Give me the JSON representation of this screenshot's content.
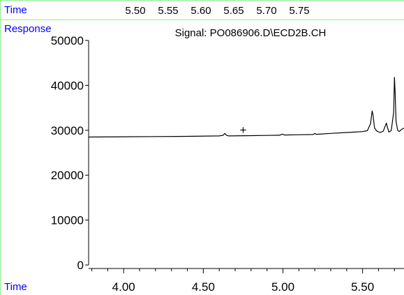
{
  "header": {
    "time_label": "Time",
    "time_ticks": [
      "5.50",
      "5.55",
      "5.60",
      "5.65",
      "5.70",
      "5.75"
    ]
  },
  "chart_data": {
    "type": "line",
    "title": "Signal: PO086906.D\\ECD2B.CH",
    "ylabel": "Response",
    "xlabel": "Time",
    "xlim": [
      3.78,
      5.76
    ],
    "ylim": [
      0,
      50000
    ],
    "xticks": [
      4.0,
      4.5,
      5.0,
      5.5
    ],
    "xtick_labels": [
      "4.00",
      "4.50",
      "5.00",
      "5.50"
    ],
    "yticks": [
      0,
      10000,
      20000,
      30000,
      40000,
      50000
    ],
    "ytick_labels": [
      "0",
      "10000",
      "20000",
      "30000",
      "40000",
      "50000"
    ],
    "grid": false,
    "series": [
      {
        "color": "#000000",
        "x": [
          3.78,
          4.0,
          4.2,
          4.4,
          4.6,
          4.625,
          4.635,
          4.645,
          4.66,
          4.8,
          4.98,
          4.995,
          5.01,
          5.1,
          5.19,
          5.2,
          5.21,
          5.3,
          5.4,
          5.45,
          5.5,
          5.53,
          5.55,
          5.56,
          5.565,
          5.575,
          5.59,
          5.61,
          5.63,
          5.645,
          5.65,
          5.655,
          5.665,
          5.68,
          5.695,
          5.7,
          5.705,
          5.71,
          5.72,
          5.73,
          5.745,
          5.76
        ],
        "y": [
          28500,
          28550,
          28600,
          28650,
          28750,
          28900,
          29300,
          28900,
          28750,
          28800,
          28900,
          29150,
          28950,
          29000,
          29050,
          29300,
          29100,
          29300,
          29500,
          29600,
          29700,
          29900,
          31500,
          34300,
          33500,
          30500,
          29800,
          29500,
          29800,
          31200,
          31600,
          30800,
          29600,
          29900,
          34000,
          41800,
          38000,
          32000,
          30000,
          29700,
          30200,
          30500
        ]
      }
    ],
    "annotations": [
      {
        "text": "+",
        "x": 4.75,
        "y": 30000
      }
    ]
  }
}
